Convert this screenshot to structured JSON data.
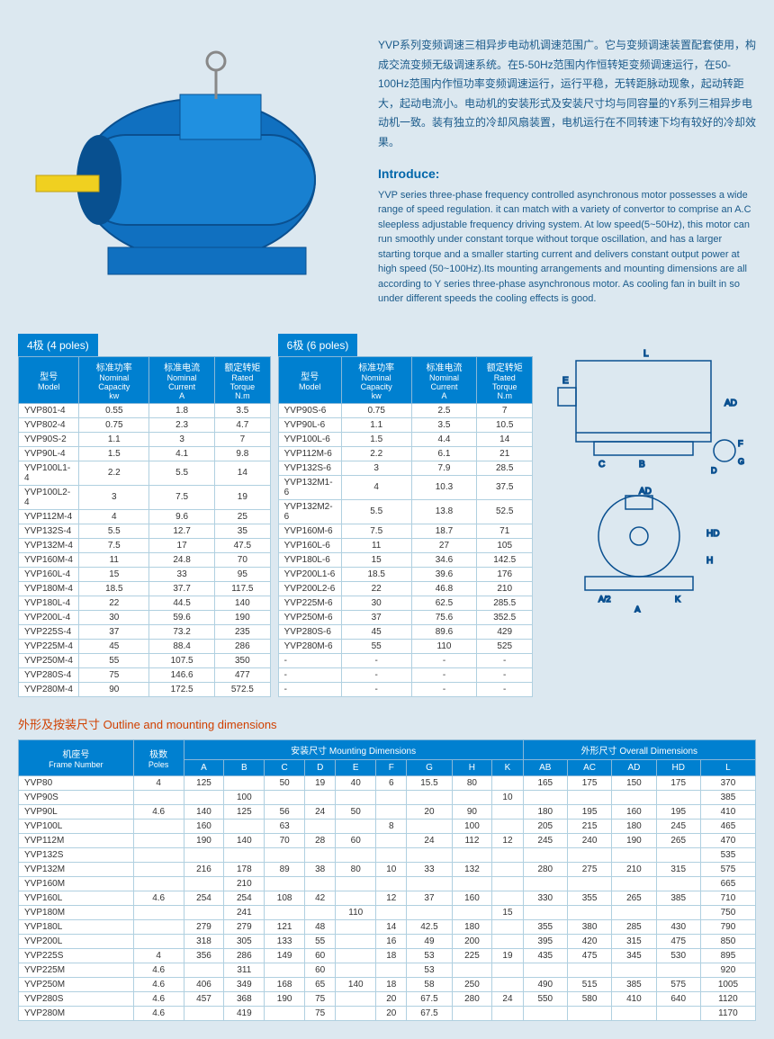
{
  "cn_intro": "YVP系列变频调速三相异步电动机调速范围广。它与变频调速装置配套使用，构成交流变频无级调速系统。在5-50Hz范围内作恒转矩变频调速运行，在50-100Hz范围内作恒功率变频调速运行，运行平稳，无转距脉动现象，起动转距大，起动电流小。电动机的安装形式及安装尺寸均与同容量的Y系列三相异步电动机一致。装有独立的冷却风扇装置，电机运行在不同转速下均有较好的冷却效果。",
  "intro_heading": "Introduce:",
  "en_intro": "YVP series three-phase frequency controlled asynchronous motor possesses a wide range of speed regulation. it can match with a variety of convertor to comprise an A.C sleepless adjustable frequency driving system. At low speed(5~50Hz), this motor can run smoothly under constant torque without torque oscillation, and has a larger starting torque and a smaller starting current and delivers constant output power at high speed (50~100Hz).Its mounting arrangements and mounting dimensions are all according to Y series three-phase asynchronous motor. As cooling fan in built in so under different speeds the cooling effects is good.",
  "tab_4poles": "4极 (4 poles)",
  "tab_6poles": "6极 (6 poles)",
  "headers": {
    "model_cn": "型号",
    "model_en": "Model",
    "cap_cn": "标准功率",
    "cap_en": "Nominal Capacity",
    "cap_unit": "kw",
    "cur_cn": "标准电流",
    "cur_en": "Nominal Current",
    "cur_unit": "A",
    "tor_cn": "额定转矩",
    "tor_en": "Rated Torque",
    "tor_unit": "N.m"
  },
  "poles4": [
    [
      "YVP801-4",
      "0.55",
      "1.8",
      "3.5"
    ],
    [
      "YVP802-4",
      "0.75",
      "2.3",
      "4.7"
    ],
    [
      "YVP90S-2",
      "1.1",
      "3",
      "7"
    ],
    [
      "YVP90L-4",
      "1.5",
      "4.1",
      "9.8"
    ],
    [
      "YVP100L1-4",
      "2.2",
      "5.5",
      "14"
    ],
    [
      "YVP100L2-4",
      "3",
      "7.5",
      "19"
    ],
    [
      "YVP112M-4",
      "4",
      "9.6",
      "25"
    ],
    [
      "YVP132S-4",
      "5.5",
      "12.7",
      "35"
    ],
    [
      "YVP132M-4",
      "7.5",
      "17",
      "47.5"
    ],
    [
      "YVP160M-4",
      "11",
      "24.8",
      "70"
    ],
    [
      "YVP160L-4",
      "15",
      "33",
      "95"
    ],
    [
      "YVP180M-4",
      "18.5",
      "37.7",
      "117.5"
    ],
    [
      "YVP180L-4",
      "22",
      "44.5",
      "140"
    ],
    [
      "YVP200L-4",
      "30",
      "59.6",
      "190"
    ],
    [
      "YVP225S-4",
      "37",
      "73.2",
      "235"
    ],
    [
      "YVP225M-4",
      "45",
      "88.4",
      "286"
    ],
    [
      "YVP250M-4",
      "55",
      "107.5",
      "350"
    ],
    [
      "YVP280S-4",
      "75",
      "146.6",
      "477"
    ],
    [
      "YVP280M-4",
      "90",
      "172.5",
      "572.5"
    ]
  ],
  "poles6": [
    [
      "YVP90S-6",
      "0.75",
      "2.5",
      "7"
    ],
    [
      "YVP90L-6",
      "1.1",
      "3.5",
      "10.5"
    ],
    [
      "YVP100L-6",
      "1.5",
      "4.4",
      "14"
    ],
    [
      "YVP112M-6",
      "2.2",
      "6.1",
      "21"
    ],
    [
      "YVP132S-6",
      "3",
      "7.9",
      "28.5"
    ],
    [
      "YVP132M1-6",
      "4",
      "10.3",
      "37.5"
    ],
    [
      "YVP132M2-6",
      "5.5",
      "13.8",
      "52.5"
    ],
    [
      "YVP160M-6",
      "7.5",
      "18.7",
      "71"
    ],
    [
      "YVP160L-6",
      "11",
      "27",
      "105"
    ],
    [
      "YVP180L-6",
      "15",
      "34.6",
      "142.5"
    ],
    [
      "YVP200L1-6",
      "18.5",
      "39.6",
      "176"
    ],
    [
      "YVP200L2-6",
      "22",
      "46.8",
      "210"
    ],
    [
      "YVP225M-6",
      "30",
      "62.5",
      "285.5"
    ],
    [
      "YVP250M-6",
      "37",
      "75.6",
      "352.5"
    ],
    [
      "YVP280S-6",
      "45",
      "89.6",
      "429"
    ],
    [
      "YVP280M-6",
      "55",
      "110",
      "525"
    ],
    [
      "-",
      "-",
      "-",
      "-"
    ],
    [
      "-",
      "-",
      "-",
      "-"
    ],
    [
      "-",
      "-",
      "-",
      "-"
    ]
  ],
  "dim_title": "外形及按装尺寸 Outline and mounting dimensions",
  "dim_headers": {
    "frame_cn": "机座号",
    "frame_en": "Frame Number",
    "poles_cn": "极数",
    "poles_en": "Poles",
    "mount": "安装尺寸 Mounting Dimensions",
    "overall": "外形尺寸 Overall Dimensions"
  },
  "dim_cols": [
    "A",
    "B",
    "C",
    "D",
    "E",
    "F",
    "G",
    "H",
    "K",
    "AB",
    "AC",
    "AD",
    "HD",
    "L"
  ],
  "dim_rows": [
    {
      "f": "YVP80",
      "p": "4",
      "v": [
        "125",
        "",
        "50",
        "19",
        "40",
        "6",
        "15.5",
        "80",
        "",
        "165",
        "175",
        "150",
        "175",
        "370"
      ]
    },
    {
      "f": "YVP90S",
      "p": "",
      "v": [
        "",
        "100",
        "",
        "",
        "",
        "",
        "",
        "",
        "10",
        "",
        "",
        "",
        "",
        "385"
      ]
    },
    {
      "f": "YVP90L",
      "p": "4.6",
      "v": [
        "140",
        "125",
        "56",
        "24",
        "50",
        "",
        "20",
        "90",
        "",
        "180",
        "195",
        "160",
        "195",
        "410"
      ]
    },
    {
      "f": "YVP100L",
      "p": "",
      "v": [
        "160",
        "",
        "63",
        "",
        "",
        "8",
        "",
        "100",
        "",
        "205",
        "215",
        "180",
        "245",
        "465"
      ]
    },
    {
      "f": "YVP112M",
      "p": "",
      "v": [
        "190",
        "140",
        "70",
        "28",
        "60",
        "",
        "24",
        "112",
        "12",
        "245",
        "240",
        "190",
        "265",
        "470"
      ]
    },
    {
      "f": "YVP132S",
      "p": "",
      "v": [
        "",
        "",
        "",
        "",
        "",
        "",
        "",
        "",
        "",
        "",
        "",
        "",
        "",
        "535"
      ]
    },
    {
      "f": "YVP132M",
      "p": "",
      "v": [
        "216",
        "178",
        "89",
        "38",
        "80",
        "10",
        "33",
        "132",
        "",
        "280",
        "275",
        "210",
        "315",
        "575"
      ]
    },
    {
      "f": "YVP160M",
      "p": "",
      "v": [
        "",
        "210",
        "",
        "",
        "",
        "",
        "",
        "",
        "",
        "",
        "",
        "",
        "",
        "665"
      ]
    },
    {
      "f": "YVP160L",
      "p": "4.6",
      "v": [
        "254",
        "254",
        "108",
        "42",
        "",
        "12",
        "37",
        "160",
        "",
        "330",
        "355",
        "265",
        "385",
        "710"
      ]
    },
    {
      "f": "YVP180M",
      "p": "",
      "v": [
        "",
        "241",
        "",
        "",
        "110",
        "",
        "",
        "",
        "15",
        "",
        "",
        "",
        "",
        "750"
      ]
    },
    {
      "f": "YVP180L",
      "p": "",
      "v": [
        "279",
        "279",
        "121",
        "48",
        "",
        "14",
        "42.5",
        "180",
        "",
        "355",
        "380",
        "285",
        "430",
        "790"
      ]
    },
    {
      "f": "YVP200L",
      "p": "",
      "v": [
        "318",
        "305",
        "133",
        "55",
        "",
        "16",
        "49",
        "200",
        "",
        "395",
        "420",
        "315",
        "475",
        "850"
      ]
    },
    {
      "f": "YVP225S",
      "p": "4",
      "v": [
        "356",
        "286",
        "149",
        "60",
        "",
        "18",
        "53",
        "225",
        "19",
        "435",
        "475",
        "345",
        "530",
        "895"
      ]
    },
    {
      "f": "YVP225M",
      "p": "4.6",
      "v": [
        "",
        "311",
        "",
        "60",
        "",
        "",
        "53",
        "",
        "",
        "",
        "",
        "",
        "",
        "920"
      ]
    },
    {
      "f": "YVP250M",
      "p": "4.6",
      "v": [
        "406",
        "349",
        "168",
        "65",
        "140",
        "18",
        "58",
        "250",
        "",
        "490",
        "515",
        "385",
        "575",
        "1005"
      ]
    },
    {
      "f": "YVP280S",
      "p": "4.6",
      "v": [
        "457",
        "368",
        "190",
        "75",
        "",
        "20",
        "67.5",
        "280",
        "24",
        "550",
        "580",
        "410",
        "640",
        "1120"
      ]
    },
    {
      "f": "YVP280M",
      "p": "4.6",
      "v": [
        "",
        "419",
        "",
        "75",
        "",
        "20",
        "67.5",
        "",
        "",
        "",
        "",
        "",
        "",
        "1170"
      ]
    }
  ],
  "colors": {
    "header_bg": "#0080d0",
    "page_bg": "#dce8f0",
    "accent": "#d04000",
    "motor_blue": "#1070c0",
    "motor_shaft": "#f0d020"
  }
}
